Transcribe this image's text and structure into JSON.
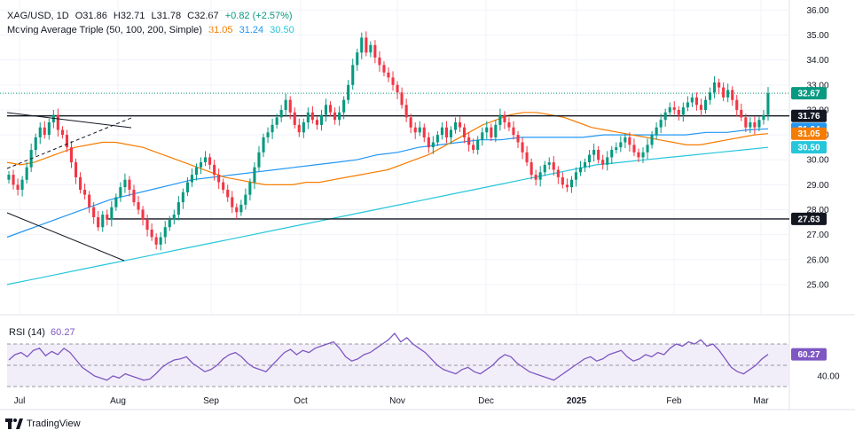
{
  "header": {
    "symbol": "XAG/USD, 1D",
    "open": "O31.86",
    "high": "H32.71",
    "low": "L31.78",
    "close": "C32.67",
    "change": "+0.82 (+2.57%)",
    "ma_title": "Moving Average Triple (50, 100, 200, Simple)",
    "ma50": "31.05",
    "ma100": "31.24",
    "ma200": "30.50"
  },
  "rsi": {
    "title": "RSI (14)",
    "value": "60.27"
  },
  "branding": {
    "name": "TradingView"
  },
  "colors": {
    "up": "#089981",
    "down": "#f23645",
    "ma50": "#f57c00",
    "ma100": "#2196f3",
    "ma200": "#26c6da",
    "rsi": "#7e57c2",
    "price": "#089981",
    "level": "#131722"
  },
  "chart_data": [
    {
      "type": "candlestick",
      "price_axis": {
        "ticks": [
          "36.00",
          "35.00",
          "34.00",
          "33.00",
          "32.00",
          "31.00",
          "30.00",
          "29.00",
          "28.00",
          "27.00",
          "26.00",
          "25.00"
        ],
        "range": [
          24.5,
          36.05
        ]
      },
      "time_axis": {
        "ticks": [
          "Jul",
          "Aug",
          "Sep",
          "Oct",
          "Nov",
          "Dec",
          "2025",
          "Feb",
          "Mar"
        ]
      },
      "tags": [
        {
          "label": "32.67",
          "value": 32.67,
          "role": "last-price"
        },
        {
          "label": "31.76",
          "value": 31.76,
          "role": "horizontal-level"
        },
        {
          "label": "31.24",
          "value": 31.24,
          "role": "ma100"
        },
        {
          "label": "31.05",
          "value": 31.05,
          "role": "ma50"
        },
        {
          "label": "30.50",
          "value": 30.5,
          "role": "ma200"
        },
        {
          "label": "27.63",
          "value": 27.63,
          "role": "horizontal-level"
        }
      ],
      "close_series": [
        29.4,
        29.0,
        28.8,
        29.2,
        29.7,
        30.4,
        30.9,
        31.3,
        31.0,
        31.5,
        31.8,
        31.2,
        31.0,
        30.5,
        29.9,
        29.3,
        28.8,
        28.6,
        28.1,
        27.7,
        27.3,
        27.8,
        27.6,
        28.1,
        28.5,
        28.9,
        29.2,
        28.8,
        28.3,
        28.0,
        27.6,
        27.2,
        26.9,
        26.6,
        26.9,
        27.3,
        27.6,
        27.8,
        28.3,
        28.7,
        29.1,
        29.4,
        29.7,
        29.9,
        30.1,
        29.8,
        29.4,
        29.1,
        28.8,
        28.5,
        28.1,
        27.9,
        28.2,
        28.6,
        29.1,
        29.7,
        30.3,
        30.9,
        31.1,
        31.4,
        31.7,
        32.0,
        32.4,
        31.9,
        31.4,
        31.1,
        31.5,
        31.9,
        31.6,
        31.4,
        31.8,
        32.2,
        31.9,
        31.6,
        31.9,
        32.4,
        33.0,
        33.8,
        34.3,
        34.9,
        34.3,
        34.6,
        34.1,
        33.8,
        33.5,
        33.3,
        33.0,
        32.7,
        32.2,
        31.7,
        31.3,
        31.1,
        31.3,
        30.9,
        30.5,
        30.7,
        31.0,
        31.3,
        30.9,
        31.2,
        31.5,
        31.3,
        30.9,
        30.6,
        30.4,
        30.8,
        31.1,
        31.3,
        30.9,
        31.4,
        31.8,
        31.5,
        31.3,
        31.0,
        30.7,
        30.3,
        29.9,
        29.4,
        29.2,
        29.5,
        29.8,
        29.9,
        29.6,
        29.3,
        29.0,
        28.9,
        29.2,
        29.5,
        29.7,
        29.9,
        30.2,
        30.4,
        30.0,
        29.8,
        30.1,
        30.4,
        30.5,
        30.7,
        30.9,
        30.6,
        30.3,
        30.1,
        30.3,
        30.6,
        31.0,
        31.3,
        31.6,
        31.9,
        32.1,
        32.0,
        31.8,
        32.1,
        32.3,
        32.5,
        32.2,
        32.0,
        32.4,
        32.7,
        33.1,
        32.9,
        32.5,
        32.8,
        32.4,
        32.0,
        31.7,
        31.3,
        31.5,
        31.3,
        31.6,
        31.8,
        32.67
      ],
      "ma50_series": [
        29.9,
        29.8,
        29.9,
        30.1,
        30.3,
        30.5,
        30.6,
        30.7,
        30.7,
        30.6,
        30.5,
        30.3,
        30.1,
        29.9,
        29.7,
        29.5,
        29.3,
        29.2,
        29.1,
        29.0,
        29.0,
        29.0,
        29.1,
        29.1,
        29.2,
        29.3,
        29.4,
        29.5,
        29.6,
        29.8,
        30.0,
        30.2,
        30.5,
        30.8,
        31.1,
        31.4,
        31.6,
        31.8,
        31.9,
        31.9,
        31.8,
        31.7,
        31.5,
        31.3,
        31.2,
        31.1,
        31.0,
        30.9,
        30.8,
        30.7,
        30.6,
        30.6,
        30.7,
        30.8,
        30.9,
        31.0,
        31.05
      ],
      "ma100_series": [
        26.9,
        27.2,
        27.5,
        27.8,
        28.1,
        28.4,
        28.6,
        28.8,
        29.0,
        29.2,
        29.3,
        29.4,
        29.5,
        29.6,
        29.7,
        29.8,
        29.9,
        30.0,
        30.2,
        30.3,
        30.5,
        30.6,
        30.7,
        30.8,
        30.8,
        30.9,
        30.9,
        30.9,
        30.9,
        31.0,
        31.0,
        31.0,
        31.0,
        31.0,
        31.1,
        31.1,
        31.2,
        31.24
      ],
      "ma200_series": [
        25.0,
        25.2,
        25.4,
        25.6,
        25.8,
        26.0,
        26.2,
        26.4,
        26.6,
        26.8,
        27.0,
        27.2,
        27.4,
        27.6,
        27.8,
        28.0,
        28.2,
        28.4,
        28.6,
        28.8,
        29.0,
        29.2,
        29.4,
        29.6,
        29.8,
        29.9,
        30.0,
        30.1,
        30.2,
        30.3,
        30.4,
        30.5
      ],
      "trendlines": "two black trend lines on the left plus a dashed line"
    },
    {
      "type": "line",
      "title": "RSI (14)",
      "y_ticks": [
        "60.27",
        "40.00"
      ],
      "levels": [
        70,
        50,
        30
      ],
      "series": [
        {
          "values": [
            55,
            60,
            62,
            58,
            64,
            66,
            59,
            63,
            60,
            66,
            62,
            55,
            48,
            44,
            40,
            38,
            36,
            40,
            38,
            42,
            40,
            38,
            36,
            37,
            42,
            48,
            52,
            55,
            56,
            58,
            52,
            48,
            44,
            46,
            50,
            56,
            60,
            62,
            58,
            52,
            48,
            46,
            44,
            50,
            56,
            62,
            65,
            60,
            64,
            62,
            66,
            68,
            70,
            72,
            66,
            58,
            54,
            56,
            60,
            62,
            66,
            70,
            74,
            80,
            72,
            76,
            70,
            66,
            62,
            56,
            50,
            46,
            44,
            42,
            46,
            48,
            44,
            42,
            46,
            50,
            56,
            60,
            58,
            52,
            48,
            44,
            42,
            40,
            38,
            36,
            40,
            44,
            48,
            52,
            56,
            58,
            54,
            56,
            60,
            62,
            64,
            58,
            54,
            56,
            60,
            58,
            62,
            60,
            66,
            70,
            68,
            72,
            70,
            74,
            68,
            70,
            64,
            56,
            48,
            44,
            42,
            46,
            50,
            56,
            60.27
          ]
        }
      ]
    }
  ]
}
